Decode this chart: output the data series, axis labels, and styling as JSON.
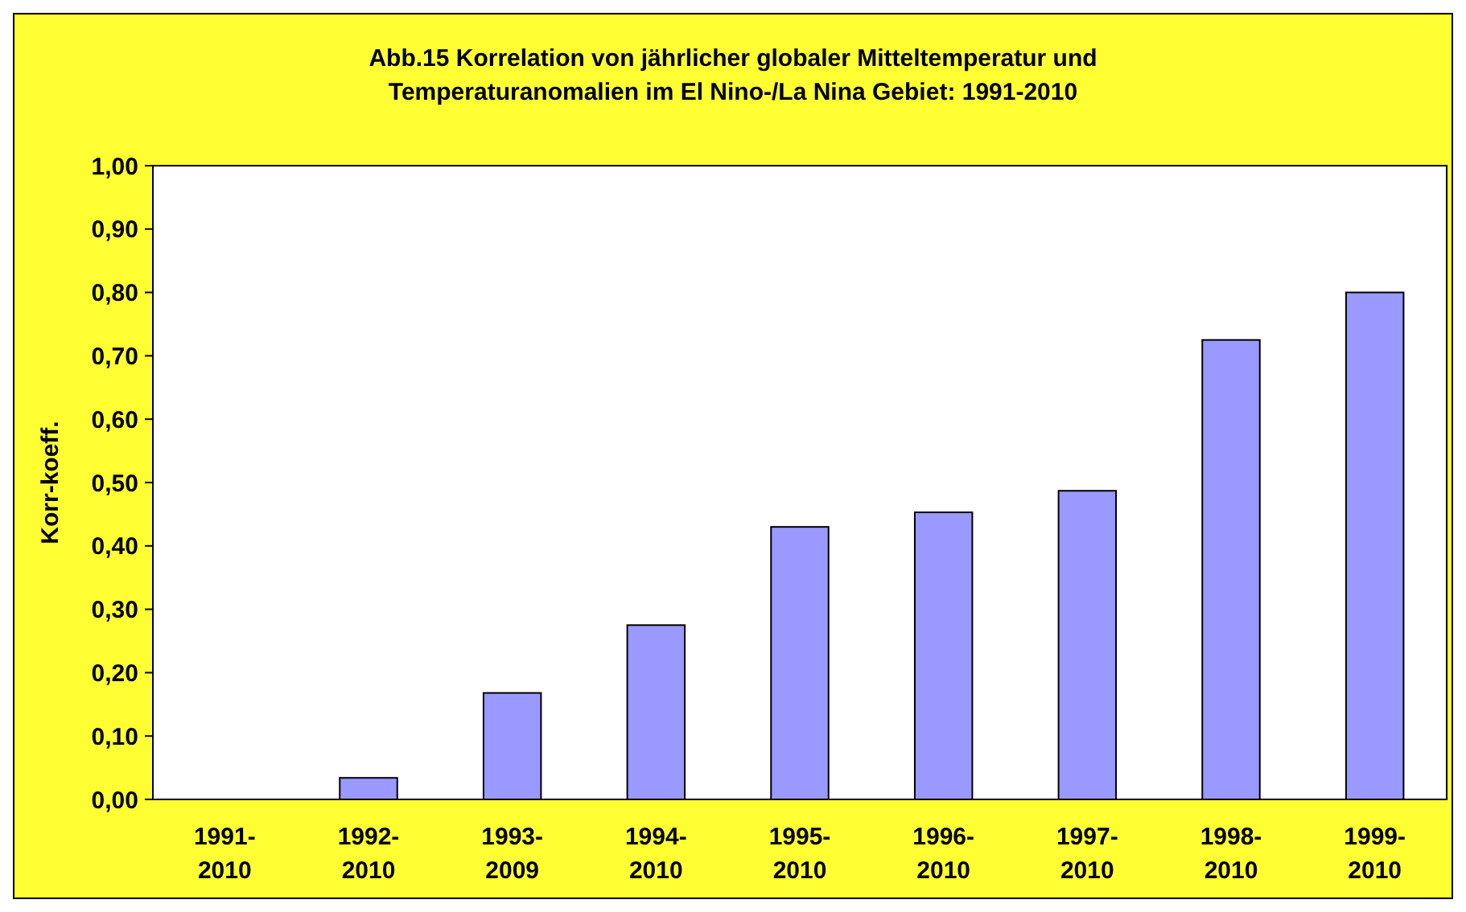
{
  "chart_data": {
    "type": "bar",
    "title": "Abb.15 Korrelation von jährlicher globaler Mitteltemperatur und Temperaturanomalien im El Nino-/La Nina Gebiet: 1991-2010",
    "ylabel": "Korr-koeff.",
    "categories": [
      "1991-2010",
      "1992-2010",
      "1993-2009",
      "1994-2010",
      "1995-2010",
      "1996-2010",
      "1997-2010",
      "1998-2010",
      "1999-2010"
    ],
    "values": [
      0,
      0.034,
      0.168,
      0.275,
      0.43,
      0.453,
      0.487,
      0.725,
      0.8
    ],
    "color": "#9999ff",
    "ylim": [
      0,
      1
    ],
    "yticks": [
      {
        "value": 0,
        "label": "0,00"
      },
      {
        "value": 0.1,
        "label": "0,10"
      },
      {
        "value": 0.2,
        "label": "0,20"
      },
      {
        "value": 0.3,
        "label": "0,30"
      },
      {
        "value": 0.4,
        "label": "0,40"
      },
      {
        "value": 0.5,
        "label": "0,50"
      },
      {
        "value": 0.6,
        "label": "0,60"
      },
      {
        "value": 0.7,
        "label": "0,70"
      },
      {
        "value": 0.8,
        "label": "0,80"
      },
      {
        "value": 0.9,
        "label": "0,90"
      },
      {
        "value": 1,
        "label": "1,00"
      }
    ],
    "grid": false
  }
}
